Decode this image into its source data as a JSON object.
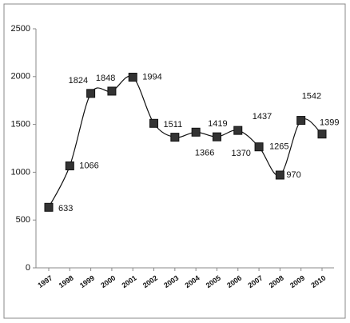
{
  "chart_data": {
    "type": "line",
    "categories": [
      "1997",
      "1998",
      "1999",
      "2000",
      "2001",
      "2002",
      "2003",
      "2004",
      "2005",
      "2006",
      "2007",
      "2008",
      "2009",
      "2010"
    ],
    "series": [
      {
        "name": null,
        "color": "#111111",
        "values": [
          633,
          1066,
          1824,
          1848,
          1994,
          1511,
          1366,
          1419,
          1370,
          1437,
          1265,
          970,
          1542,
          1399
        ]
      }
    ],
    "ylim": [
      0,
      2500
    ],
    "yticks": [
      0,
      500,
      1000,
      1500,
      2000,
      2500
    ],
    "grid": false
  }
}
